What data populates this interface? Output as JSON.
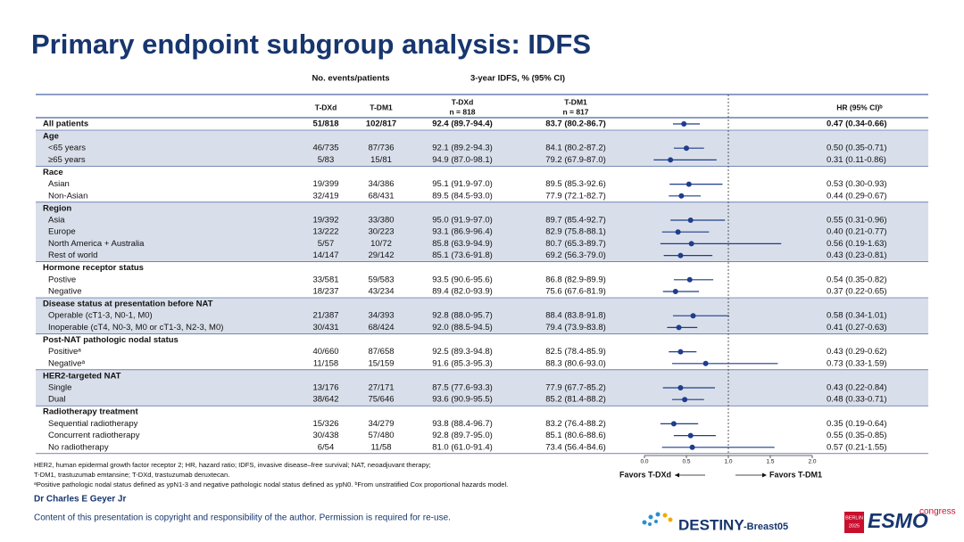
{
  "title": "Primary endpoint subgroup analysis: IDFS",
  "chart_data": {
    "type": "forest",
    "color": "#1f3d8c",
    "column_groups": [
      "No. events/patients",
      "3-year IDFS, % (95% CI)"
    ],
    "columns": [
      [
        "T-DXd"
      ],
      [
        "T-DM1"
      ],
      [
        "T-DXd",
        "n = 818"
      ],
      [
        "T-DM1",
        "n = 817"
      ],
      [
        "HR (95% CI)ᵇ"
      ]
    ],
    "overall": {
      "label": "All patients",
      "cells": [
        "51/818",
        "102/817",
        "92.4 (89.7-94.4)",
        "83.7 (80.2-86.7)"
      ],
      "hr": 0.47,
      "lo": 0.34,
      "hi": 0.66,
      "hr_label": "0.47 (0.34-0.66)"
    },
    "groups": [
      {
        "label": "Age",
        "rows": [
          {
            "label": "<65 years",
            "cells": [
              "46/735",
              "87/736",
              "92.1 (89.2-94.3)",
              "84.1 (80.2-87.2)"
            ],
            "hr": 0.5,
            "lo": 0.35,
            "hi": 0.71,
            "hr_label": "0.50 (0.35-0.71)"
          },
          {
            "label": "≥65 years",
            "cells": [
              "5/83",
              "15/81",
              "94.9 (87.0-98.1)",
              "79.2 (67.9-87.0)"
            ],
            "hr": 0.31,
            "lo": 0.11,
            "hi": 0.86,
            "hr_label": "0.31 (0.11-0.86)"
          }
        ]
      },
      {
        "label": "Race",
        "rows": [
          {
            "label": "Asian",
            "cells": [
              "19/399",
              "34/386",
              "95.1 (91.9-97.0)",
              "89.5 (85.3-92.6)"
            ],
            "hr": 0.53,
            "lo": 0.3,
            "hi": 0.93,
            "hr_label": "0.53 (0.30-0.93)"
          },
          {
            "label": "Non-Asian",
            "cells": [
              "32/419",
              "68/431",
              "89.5 (84.5-93.0)",
              "77.9 (72.1-82.7)"
            ],
            "hr": 0.44,
            "lo": 0.29,
            "hi": 0.67,
            "hr_label": "0.44 (0.29-0.67)"
          }
        ]
      },
      {
        "label": "Region",
        "rows": [
          {
            "label": "Asia",
            "cells": [
              "19/392",
              "33/380",
              "95.0 (91.9-97.0)",
              "89.7 (85.4-92.7)"
            ],
            "hr": 0.55,
            "lo": 0.31,
            "hi": 0.96,
            "hr_label": "0.55 (0.31-0.96)"
          },
          {
            "label": "Europe",
            "cells": [
              "13/222",
              "30/223",
              "93.1 (86.9-96.4)",
              "82.9 (75.8-88.1)"
            ],
            "hr": 0.4,
            "lo": 0.21,
            "hi": 0.77,
            "hr_label": "0.40 (0.21-0.77)"
          },
          {
            "label": "North America + Australia",
            "cells": [
              "5/57",
              "10/72",
              "85.8 (63.9-94.9)",
              "80.7 (65.3-89.7)"
            ],
            "hr": 0.56,
            "lo": 0.19,
            "hi": 1.63,
            "hr_label": "0.56 (0.19-1.63)"
          },
          {
            "label": "Rest of world",
            "cells": [
              "14/147",
              "29/142",
              "85.1 (73.6-91.8)",
              "69.2 (56.3-79.0)"
            ],
            "hr": 0.43,
            "lo": 0.23,
            "hi": 0.81,
            "hr_label": "0.43 (0.23-0.81)"
          }
        ]
      },
      {
        "label": "Hormone receptor status",
        "rows": [
          {
            "label": "Postive",
            "cells": [
              "33/581",
              "59/583",
              "93.5 (90.6-95.6)",
              "86.8 (82.9-89.9)"
            ],
            "hr": 0.54,
            "lo": 0.35,
            "hi": 0.82,
            "hr_label": "0.54 (0.35-0.82)"
          },
          {
            "label": "Negative",
            "cells": [
              "18/237",
              "43/234",
              "89.4 (82.0-93.9)",
              "75.6 (67.6-81.9)"
            ],
            "hr": 0.37,
            "lo": 0.22,
            "hi": 0.65,
            "hr_label": "0.37 (0.22-0.65)"
          }
        ]
      },
      {
        "label": "Disease status at presentation before NAT",
        "rows": [
          {
            "label": "Operable (cT1-3, N0-1, M0)",
            "cells": [
              "21/387",
              "34/393",
              "92.8 (88.0-95.7)",
              "88.4 (83.8-91.8)"
            ],
            "hr": 0.58,
            "lo": 0.34,
            "hi": 1.01,
            "hr_label": "0.58 (0.34-1.01)"
          },
          {
            "label": "Inoperable (cT4, N0-3, M0 or cT1-3, N2-3, M0)",
            "cells": [
              "30/431",
              "68/424",
              "92.0 (88.5-94.5)",
              "79.4 (73.9-83.8)"
            ],
            "hr": 0.41,
            "lo": 0.27,
            "hi": 0.63,
            "hr_label": "0.41 (0.27-0.63)"
          }
        ]
      },
      {
        "label": "Post-NAT pathologic nodal status",
        "rows": [
          {
            "label": "Positiveᵃ",
            "cells": [
              "40/660",
              "87/658",
              "92.5 (89.3-94.8)",
              "82.5 (78.4-85.9)"
            ],
            "hr": 0.43,
            "lo": 0.29,
            "hi": 0.62,
            "hr_label": "0.43 (0.29-0.62)"
          },
          {
            "label": "Negativeᵃ",
            "cells": [
              "11/158",
              "15/159",
              "91.6 (85.3-95.3)",
              "88.3 (80.6-93.0)"
            ],
            "hr": 0.73,
            "lo": 0.33,
            "hi": 1.59,
            "hr_label": "0.73 (0.33-1.59)"
          }
        ]
      },
      {
        "label": "HER2-targeted NAT",
        "rows": [
          {
            "label": "Single",
            "cells": [
              "13/176",
              "27/171",
              "87.5 (77.6-93.3)",
              "77.9 (67.7-85.2)"
            ],
            "hr": 0.43,
            "lo": 0.22,
            "hi": 0.84,
            "hr_label": "0.43 (0.22-0.84)"
          },
          {
            "label": "Dual",
            "cells": [
              "38/642",
              "75/646",
              "93.6 (90.9-95.5)",
              "85.2 (81.4-88.2)"
            ],
            "hr": 0.48,
            "lo": 0.33,
            "hi": 0.71,
            "hr_label": "0.48 (0.33-0.71)"
          }
        ]
      },
      {
        "label": "Radiotherapy treatment",
        "rows": [
          {
            "label": "Sequential radiotherapy",
            "cells": [
              "15/326",
              "34/279",
              "93.8 (88.4-96.7)",
              "83.2 (76.4-88.2)"
            ],
            "hr": 0.35,
            "lo": 0.19,
            "hi": 0.64,
            "hr_label": "0.35 (0.19-0.64)"
          },
          {
            "label": "Concurrent radiotherapy",
            "cells": [
              "30/438",
              "57/480",
              "92.8 (89.7-95.0)",
              "85.1 (80.6-88.6)"
            ],
            "hr": 0.55,
            "lo": 0.35,
            "hi": 0.85,
            "hr_label": "0.55 (0.35-0.85)"
          },
          {
            "label": "No radiotherapy",
            "cells": [
              "6/54",
              "11/58",
              "81.0 (61.0-91.4)",
              "73.4 (56.4-84.6)"
            ],
            "hr": 0.57,
            "lo": 0.21,
            "hi": 1.55,
            "hr_label": "0.57 (0.21-1.55)"
          }
        ]
      }
    ],
    "xlim": [
      0,
      2
    ],
    "xticks": [
      {
        "value": 0,
        "label": "0.0"
      },
      0.5,
      {
        "value": 1,
        "label": "1.0"
      },
      1.5,
      {
        "value": 2,
        "label": "2.0"
      }
    ],
    "reference_line": 1,
    "favors": [
      "Favors T-DXd",
      "Favors T-DM1"
    ]
  },
  "footnotes": [
    "HER2, human epidermal growth factor receptor 2; HR, hazard ratio; IDFS, invasive disease–free survival; NAT, neoadjuvant therapy;",
    "T-DM1, trastuzumab emtansine; T-DXd, trastuzumab deruxtecan.",
    "ᵃPositive pathologic nodal status defined as ypN1-3 and negative pathologic nodal status defined as ypN0. ᵇFrom unstratified Cox proportional hazards model."
  ],
  "author": "Dr Charles E Geyer Jr",
  "copyright": "Content of this presentation is copyright and responsibility of the author. Permission is required for re-use.",
  "logos": {
    "trial": "DESTINY",
    "trial_suffix": "-Breast05",
    "congress": "ESMO",
    "congress_word": "congress",
    "city": "BERLIN",
    "year": "2025"
  }
}
